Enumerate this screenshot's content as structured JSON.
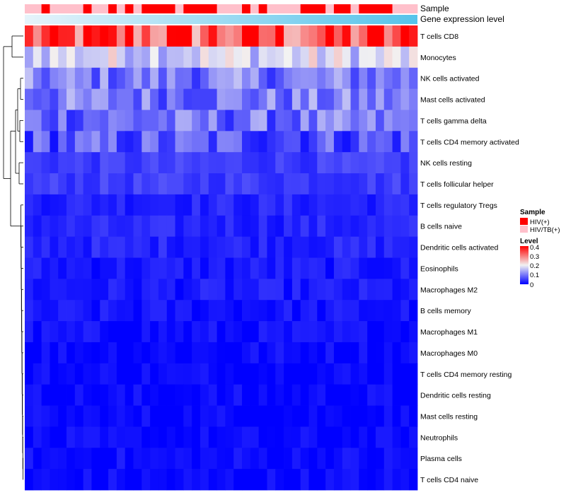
{
  "chart_data": {
    "type": "heatmap",
    "title": "",
    "annotation_tracks": [
      {
        "name": "Sample",
        "label": "Sample"
      },
      {
        "name": "Gene expression level",
        "label": "Gene expression level"
      }
    ],
    "sample_groups": [
      "P",
      "P",
      "R",
      "P",
      "P",
      "P",
      "P",
      "R",
      "P",
      "P",
      "R",
      "P",
      "R",
      "P",
      "R",
      "R",
      "R",
      "R",
      "P",
      "R",
      "R",
      "R",
      "R",
      "P",
      "P",
      "P",
      "R",
      "P",
      "R",
      "P",
      "P",
      "P",
      "P",
      "R",
      "R",
      "R",
      "P",
      "R",
      "R",
      "P",
      "R",
      "R",
      "R",
      "R",
      "P",
      "P",
      "P"
    ],
    "rows": [
      "T cells CD8",
      "Monocytes",
      "NK cells activated",
      "Mast cells activated",
      "T cells gamma delta",
      "T cells CD4 memory activated",
      "NK cells resting",
      "T cells follicular helper",
      "T cells regulatory  Tregs",
      "B cells naive",
      "Dendritic cells activated",
      "Eosinophils",
      "Macrophages M2",
      "B cells memory",
      "Macrophages M1",
      "Macrophages M0",
      "T cells CD4 memory resting",
      "Dendritic cells resting",
      "Mast cells resting",
      "Neutrophils",
      "Plasma cells",
      "T cells CD4 naive"
    ],
    "n_columns": 47,
    "row_base_levels": [
      0.33,
      0.18,
      0.1,
      0.1,
      0.09,
      0.07,
      0.05,
      0.05,
      0.03,
      0.03,
      0.03,
      0.02,
      0.02,
      0.015,
      0.01,
      0.008,
      0.006,
      0.005,
      0.004,
      0.003,
      0.008,
      0.005
    ],
    "legend": {
      "sample": {
        "title": "Sample",
        "entries": [
          {
            "label": "HIV(+)",
            "color": "#ff0000"
          },
          {
            "label": "HIV/TB(+)",
            "color": "#ffc0cb"
          }
        ]
      },
      "level": {
        "title": "Level",
        "ticks": [
          "0.4",
          "0.3",
          "0.2",
          "0.1",
          "0"
        ],
        "min": 0,
        "max": 0.4
      }
    },
    "colors": {
      "low": "#0000ff",
      "mid": "#f2f2f2",
      "high": "#ff0000",
      "hiv": "#ff0000",
      "hivtb": "#ffc0cb",
      "expr_start": "#e6f4fb",
      "expr_end": "#56c3ea"
    }
  }
}
